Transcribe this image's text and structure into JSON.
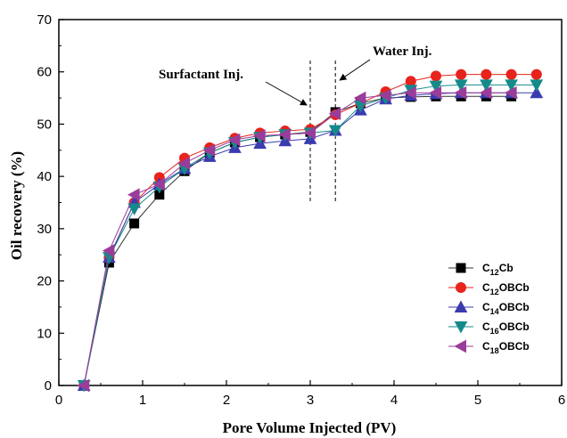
{
  "chart_data": {
    "type": "line",
    "xlabel": "Pore Volume Injected (PV)",
    "ylabel": "Oil recovery (%)",
    "xlim": [
      0,
      6
    ],
    "ylim": [
      0,
      70
    ],
    "xticks": [
      0,
      1,
      2,
      3,
      4,
      5,
      6
    ],
    "yticks": [
      0,
      10,
      20,
      30,
      40,
      50,
      60,
      70
    ],
    "legend_position": "bottom-right",
    "annotations": [
      {
        "text": "Surfactant Inj.",
        "arrow_to_x": 3.0
      },
      {
        "text": "Water Inj.",
        "arrow_to_x": 3.3
      }
    ],
    "vlines": [
      3.0,
      3.3
    ],
    "series": [
      {
        "name_base": "C",
        "name_sub": "12",
        "name_rest": "Cb",
        "marker": "square",
        "color": "#000000",
        "line_color": "#333333",
        "x": [
          0.3,
          0.6,
          0.9,
          1.2,
          1.5,
          1.8,
          2.1,
          2.4,
          2.7,
          3.0,
          3.3,
          3.6,
          3.9,
          4.2,
          4.5,
          4.8,
          5.1,
          5.4
        ],
        "y": [
          0,
          23.5,
          31,
          36.5,
          41,
          44.5,
          46.5,
          47.5,
          48,
          48.5,
          52.3,
          54,
          55,
          55.2,
          55.3,
          55.3,
          55.3,
          55.3
        ]
      },
      {
        "name_base": "C",
        "name_sub": "12",
        "name_rest": "OBCb",
        "marker": "circle",
        "color": "#e8231c",
        "line_color": "#e8231c",
        "x": [
          0.3,
          0.6,
          0.9,
          1.2,
          1.5,
          1.8,
          2.1,
          2.4,
          2.7,
          3.0,
          3.3,
          3.6,
          3.9,
          4.2,
          4.5,
          4.8,
          5.1,
          5.4,
          5.7
        ],
        "y": [
          0,
          24.5,
          35,
          39.8,
          43.5,
          45.5,
          47.3,
          48.3,
          48.7,
          49,
          51.8,
          54,
          56.2,
          58.2,
          59.2,
          59.5,
          59.5,
          59.5,
          59.5
        ]
      },
      {
        "name_base": "C",
        "name_sub": "14",
        "name_rest": "OBCb",
        "marker": "triangle-up",
        "color": "#3b3bb0",
        "line_color": "#3b3bb0",
        "x": [
          0.3,
          0.6,
          0.9,
          1.2,
          1.5,
          1.8,
          2.1,
          2.4,
          2.7,
          3.0,
          3.3,
          3.6,
          3.9,
          4.2,
          4.5,
          4.8,
          5.1,
          5.4,
          5.7
        ],
        "y": [
          0,
          24.5,
          35,
          38.5,
          41.5,
          43.8,
          45.5,
          46.3,
          46.8,
          47.2,
          48.8,
          52.7,
          54.8,
          55.5,
          55.8,
          56,
          56,
          56,
          56
        ]
      },
      {
        "name_base": "C",
        "name_sub": "16",
        "name_rest": "OBCb",
        "marker": "triangle-down",
        "color": "#168a8a",
        "line_color": "#168a8a",
        "x": [
          0.3,
          0.6,
          0.9,
          1.2,
          1.5,
          1.8,
          2.1,
          2.4,
          2.7,
          3.0,
          3.3,
          3.6,
          3.9,
          4.2,
          4.5,
          4.8,
          5.1,
          5.4,
          5.7
        ],
        "y": [
          0,
          24.5,
          33.8,
          38,
          41.5,
          44.5,
          46.5,
          47.5,
          48,
          48.3,
          48.8,
          53.5,
          55,
          56.5,
          57.3,
          57.5,
          57.5,
          57.5,
          57.5
        ]
      },
      {
        "name_base": "C",
        "name_sub": "18",
        "name_rest": "OBCb",
        "marker": "triangle-left",
        "color": "#9a3c9a",
        "line_color": "#9a3c9a",
        "x": [
          0.3,
          0.6,
          0.9,
          1.2,
          1.5,
          1.8,
          2.1,
          2.4,
          2.7,
          3.0,
          3.3,
          3.6,
          3.9,
          4.2,
          4.5,
          4.8,
          5.1,
          5.4
        ],
        "y": [
          0,
          25.8,
          36.5,
          38.5,
          42.5,
          45,
          47,
          47.8,
          48,
          48.3,
          52,
          55,
          55.5,
          56,
          56,
          56,
          56,
          56
        ]
      }
    ]
  }
}
